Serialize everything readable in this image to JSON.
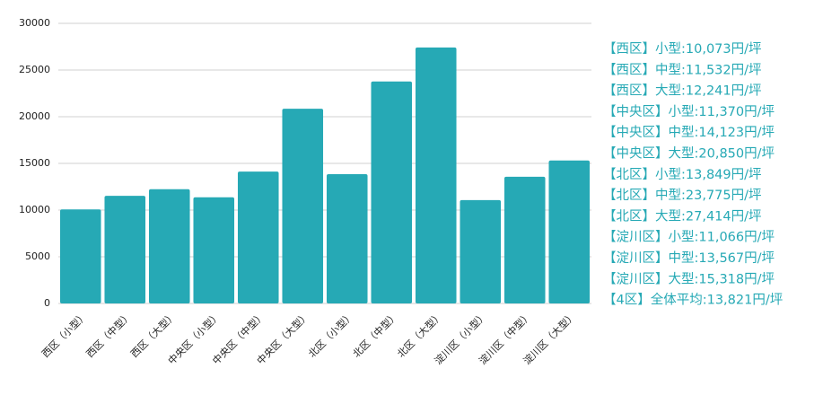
{
  "chart_data": {
    "type": "bar",
    "categories": [
      "西区（小型）",
      "西区（中型）",
      "西区（大型）",
      "中央区（小型）",
      "中央区（中型）",
      "中央区（大型）",
      "北区（小型）",
      "北区（中型）",
      "北区（大型）",
      "淀川区（小型）",
      "淀川区（中型）",
      "淀川区（大型）"
    ],
    "values": [
      10073,
      11532,
      12241,
      11370,
      14123,
      20850,
      13849,
      23775,
      27414,
      11066,
      13567,
      15318
    ],
    "color": "#26a9b5",
    "ylim": [
      0,
      30000
    ],
    "yticks": [
      0,
      5000,
      10000,
      15000,
      20000,
      25000,
      30000
    ],
    "grid": true,
    "annotations": [
      "【西区】小型:10,073円/坪",
      "【西区】中型:11,532円/坪",
      "【西区】大型:12,241円/坪",
      "【中央区】小型:11,370円/坪",
      "【中央区】中型:14,123円/坪",
      "【中央区】大型:20,850円/坪",
      "【北区】小型:13,849円/坪",
      "【北区】中型:23,775円/坪",
      "【北区】大型:27,414円/坪",
      "【淀川区】小型:11,066円/坪",
      "【淀川区】中型:13,567円/坪",
      "【淀川区】大型:15,318円/坪",
      "【4区】全体平均:13,821円/坪"
    ]
  }
}
